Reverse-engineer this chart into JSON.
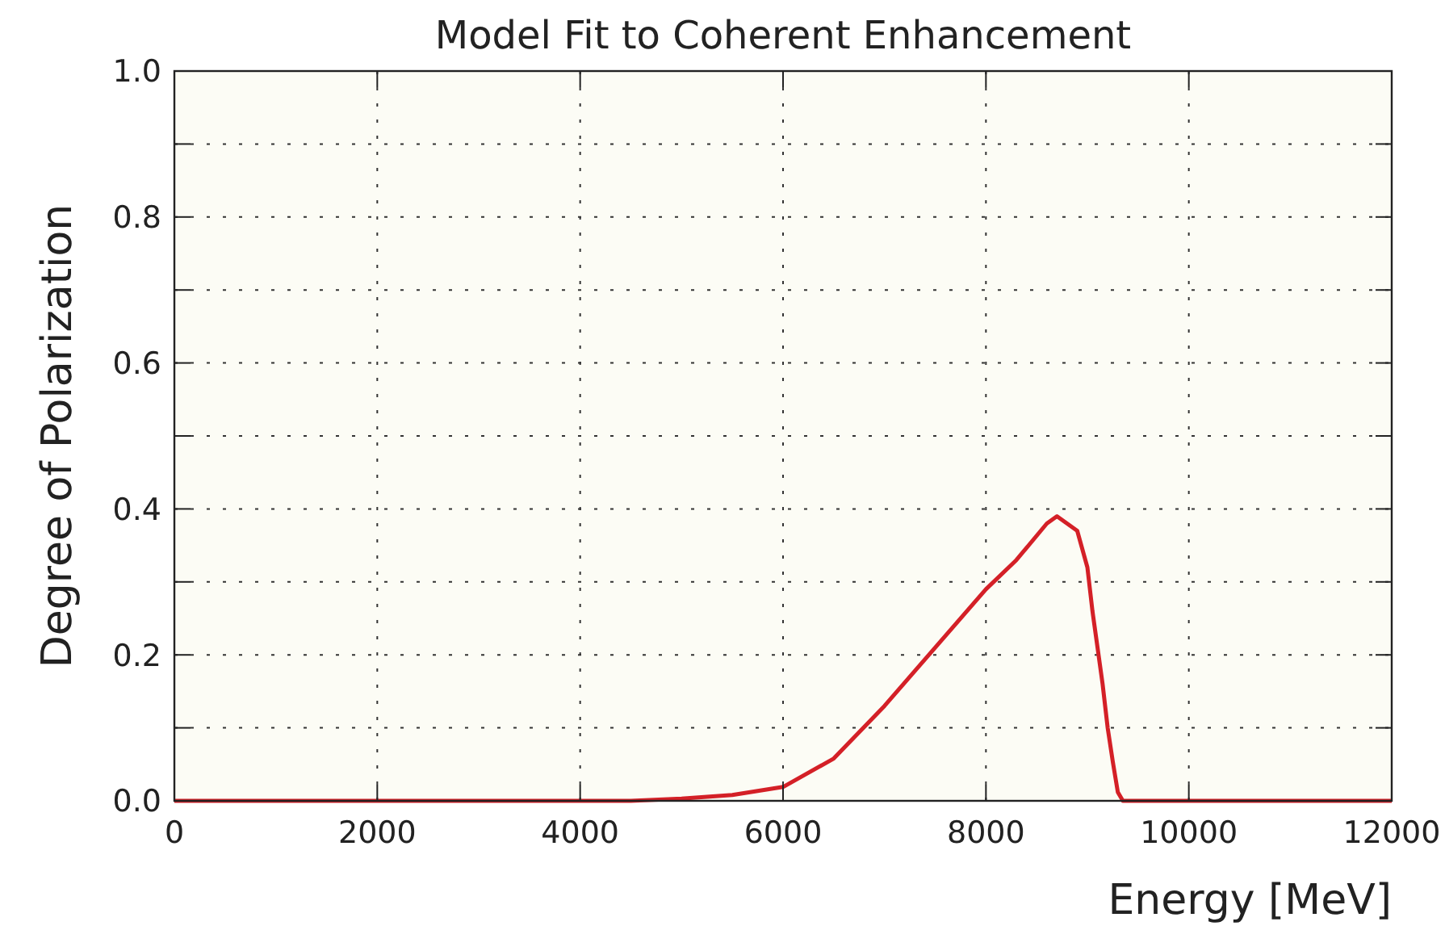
{
  "chart_data": {
    "type": "line",
    "title": "Model Fit to Coherent Enhancement",
    "xlabel": "Energy [MeV]",
    "ylabel": "Degree of Polarization",
    "xlim": [
      0,
      12000
    ],
    "xticks": [
      0,
      2000,
      4000,
      6000,
      8000,
      10000,
      12000
    ],
    "ylim": [
      0,
      1
    ],
    "yticks": [
      {
        "value": 0,
        "label": "0.0"
      },
      {
        "value": 0.1,
        "label": null
      },
      {
        "value": 0.2,
        "label": "0.2"
      },
      {
        "value": 0.3,
        "label": null
      },
      {
        "value": 0.4,
        "label": "0.4"
      },
      {
        "value": 0.5,
        "label": null
      },
      {
        "value": 0.6,
        "label": "0.6"
      },
      {
        "value": 0.7,
        "label": null
      },
      {
        "value": 0.8,
        "label": "0.8"
      },
      {
        "value": 0.9,
        "label": null
      },
      {
        "value": 1,
        "label": "1.0"
      }
    ],
    "grid": true,
    "line_style": "solid",
    "marker": "none",
    "series": [
      {
        "color": "#d42027",
        "x": [
          0,
          4500,
          5000,
          5500,
          6000,
          6500,
          7000,
          7500,
          8000,
          8300,
          8600,
          8700,
          8900,
          9000,
          9050,
          9100,
          9150,
          9200,
          9250,
          9300,
          9350,
          12000
        ],
        "values": [
          0,
          0,
          0.003,
          0.008,
          0.019,
          0.058,
          0.13,
          0.21,
          0.29,
          0.33,
          0.38,
          0.39,
          0.37,
          0.32,
          0.26,
          0.21,
          0.16,
          0.1,
          0.054,
          0.012,
          0,
          0
        ]
      }
    ]
  }
}
